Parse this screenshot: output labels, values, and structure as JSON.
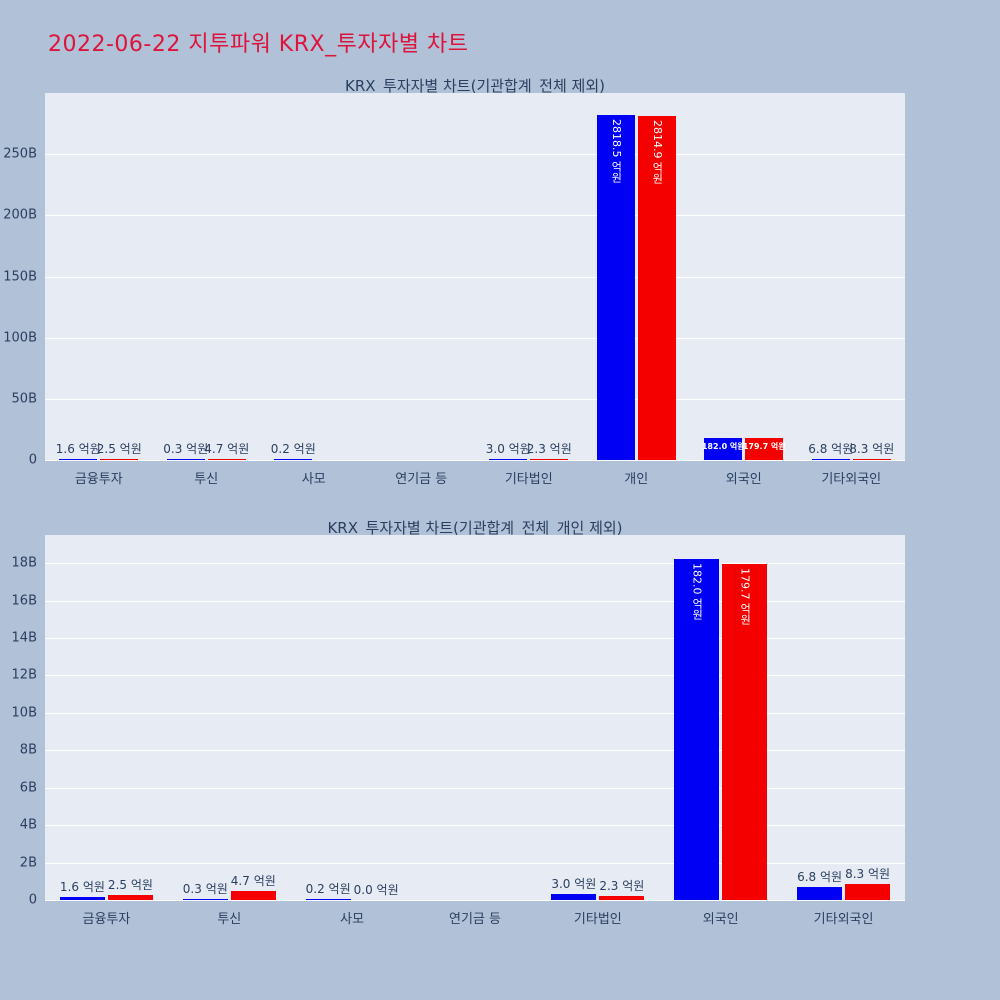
{
  "page": {
    "title": "2022-06-22 지투파워 KRX_투자자별 차트",
    "title_color": "#dc143c",
    "background_color": "#b1c2d8",
    "plot_background_color": "#e7ebf4",
    "text_color": "#2a3f5f",
    "gridline_color": "#ffffff"
  },
  "chart_data": [
    {
      "type": "bar",
      "title": "KRX_투자자별 차트(기관합계_전체 제외)",
      "unit": "억원",
      "grid": true,
      "legend": "none",
      "categories": [
        "금융투자",
        "투신",
        "사모",
        "연기금 등",
        "기타법인",
        "개인",
        "외국인",
        "기타외국인"
      ],
      "series": [
        {
          "name": "series-blue",
          "color": "#0000f5",
          "values_eokwon": [
            1.6,
            0.3,
            0.2,
            null,
            3.0,
            2818.5,
            182.0,
            6.8
          ],
          "labels": [
            "1.6 억원",
            "0.3 억원",
            "0.2 억원",
            "",
            "3.0 억원",
            "2818.5 억원",
            "182.0 억원",
            "6.8 억원"
          ],
          "label_positions": [
            "outside",
            "outside",
            "outside",
            "none",
            "outside",
            "inside-vertical",
            "inside",
            "outside"
          ]
        },
        {
          "name": "series-red",
          "color": "#f50000",
          "values_eokwon": [
            2.5,
            4.7,
            null,
            null,
            2.3,
            2814.9,
            179.7,
            8.3
          ],
          "labels": [
            "2.5 억원",
            "4.7 억원",
            "",
            "",
            "2.3 억원",
            "2814.9 억원",
            "179.7 억원",
            "8.3 억원"
          ],
          "label_positions": [
            "outside",
            "outside",
            "none",
            "none",
            "outside",
            "inside-vertical",
            "inside",
            "outside"
          ]
        }
      ],
      "yaxis": {
        "max_b": 300,
        "eokwon_per_b": 10,
        "ticks": [
          {
            "label": "0",
            "value": 0
          },
          {
            "label": "50B",
            "value": 50
          },
          {
            "label": "100B",
            "value": 100
          },
          {
            "label": "150B",
            "value": 150
          },
          {
            "label": "200B",
            "value": 200
          },
          {
            "label": "250B",
            "value": 250
          }
        ]
      }
    },
    {
      "type": "bar",
      "title": "KRX_투자자별 차트(기관합계_전체_개인 제외)",
      "unit": "억원",
      "grid": true,
      "legend": "none",
      "categories": [
        "금융투자",
        "투신",
        "사모",
        "연기금 등",
        "기타법인",
        "외국인",
        "기타외국인"
      ],
      "series": [
        {
          "name": "series-blue",
          "color": "#0000f5",
          "values_eokwon": [
            1.6,
            0.3,
            0.2,
            null,
            3.0,
            182.0,
            6.8
          ],
          "labels": [
            "1.6 억원",
            "0.3 억원",
            "0.2 억원",
            "",
            "3.0 억원",
            "182.0 억원",
            "6.8 억원"
          ],
          "label_positions": [
            "outside",
            "outside",
            "outside",
            "none",
            "outside",
            "inside-vertical",
            "outside"
          ]
        },
        {
          "name": "series-red",
          "color": "#f50000",
          "values_eokwon": [
            2.5,
            4.7,
            0.0,
            null,
            2.3,
            179.7,
            8.3
          ],
          "labels": [
            "2.5 억원",
            "4.7 억원",
            "0.0 억원",
            "",
            "2.3 억원",
            "179.7 억원",
            "8.3 억원"
          ],
          "label_positions": [
            "outside",
            "outside",
            "outside",
            "none",
            "outside",
            "inside-vertical",
            "outside"
          ]
        }
      ],
      "yaxis": {
        "max_b": 19.5,
        "eokwon_per_b": 10,
        "ticks": [
          {
            "label": "0",
            "value": 0
          },
          {
            "label": "2B",
            "value": 2
          },
          {
            "label": "4B",
            "value": 4
          },
          {
            "label": "6B",
            "value": 6
          },
          {
            "label": "8B",
            "value": 8
          },
          {
            "label": "10B",
            "value": 10
          },
          {
            "label": "12B",
            "value": 12
          },
          {
            "label": "14B",
            "value": 14
          },
          {
            "label": "16B",
            "value": 16
          },
          {
            "label": "18B",
            "value": 18
          }
        ]
      }
    }
  ]
}
